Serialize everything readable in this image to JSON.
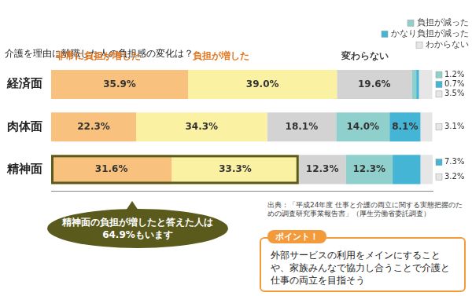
{
  "chart_data": {
    "type": "bar",
    "title": "介護を理由に離職した人の負担感の変化は？",
    "orientation": "horizontal",
    "stacked": true,
    "grid": false,
    "data_labels": true,
    "tick_labels": "y",
    "categories": [
      "経済面",
      "肉体面",
      "精神面"
    ],
    "xlim": [
      0,
      100
    ],
    "series": [
      {
        "name": "非常に負担が増した",
        "color": "#f8c27e",
        "values": [
          35.9,
          22.3,
          31.6
        ],
        "value_labels": [
          "35.9%",
          "22.3%",
          "31.6%"
        ]
      },
      {
        "name": "負担が増した",
        "color": "#fbf1a3",
        "values": [
          39.0,
          34.3,
          33.3
        ],
        "value_labels": [
          "39.0%",
          "34.3%",
          "33.3%"
        ]
      },
      {
        "name": "変わらない",
        "color": "#d3d3d3",
        "values": [
          19.6,
          18.1,
          12.3
        ],
        "value_labels": [
          "19.6%",
          "18.1%",
          "12.3%"
        ]
      },
      {
        "name": "負担が減った",
        "color": "#8fd0cd",
        "values": [
          1.2,
          14.0,
          12.3
        ],
        "value_labels": [
          "1.2%",
          "14.0%",
          "12.3%"
        ]
      },
      {
        "name": "かなり負担が減った",
        "color": "#45b5d6",
        "values": [
          0.7,
          8.1,
          7.3
        ],
        "value_labels": [
          "0.7%",
          "8.1%",
          "7.3%"
        ]
      },
      {
        "name": "わからない",
        "color": "#e6e6e6",
        "values": [
          3.5,
          3.1,
          3.2
        ],
        "value_labels": [
          "3.5%",
          "3.1%",
          "3.2%"
        ]
      }
    ],
    "annotations": [
      "精神面の負担が増したと答えた人は64.9%もいます",
      "ポイント！",
      "外部サービスの利用をメインにすることや、家族みんなで協力し合うことで介護と仕事の両立を目指そう"
    ],
    "source": "出典：「平成24年度 仕事と介護の両立に関する実態把握のための調査研究事業報告書」（厚生労働省委託調査）"
  }
}
